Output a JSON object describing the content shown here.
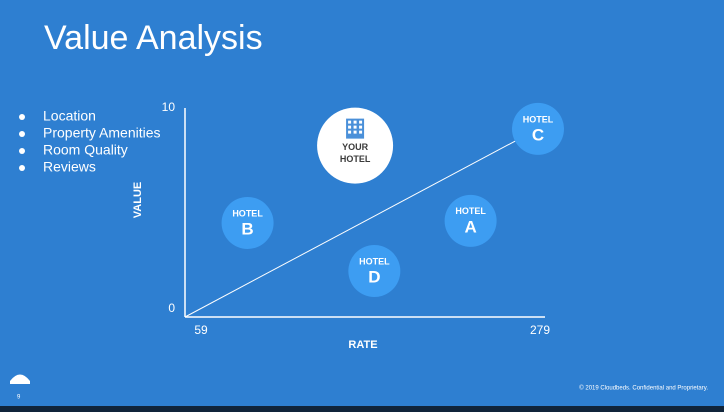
{
  "title": "Value Analysis",
  "bullets": [
    "Location",
    "Property Amenities",
    "Room Quality",
    "Reviews"
  ],
  "footer": "© 2019 Cloudbeds. Confidential and Proprietary.",
  "page_number": "9",
  "chart_data": {
    "type": "scatter",
    "x_label": "RATE",
    "y_label": "VALUE",
    "xlim": [
      59,
      279
    ],
    "ylim": [
      0,
      10
    ],
    "xticks": [
      59,
      279
    ],
    "yticks": [
      0,
      10
    ],
    "grid": false,
    "trend": {
      "x": [
        59,
        279
      ],
      "y": [
        0,
        9
      ],
      "color": "#ffffff"
    },
    "points": {
      "x": [
        165,
        279,
        98,
        237,
        177
      ],
      "y": [
        8.2,
        9.0,
        4.5,
        4.6,
        2.2
      ],
      "labels": [
        [
          "YOUR",
          "HOTEL"
        ],
        [
          "HOTEL",
          "C"
        ],
        [
          "HOTEL",
          "B"
        ],
        [
          "HOTEL",
          "A"
        ],
        [
          "HOTEL",
          "D"
        ]
      ],
      "colors": [
        "#ffffff",
        "#3d9df2",
        "#3d9df2",
        "#3d9df2",
        "#3d9df2"
      ]
    }
  }
}
